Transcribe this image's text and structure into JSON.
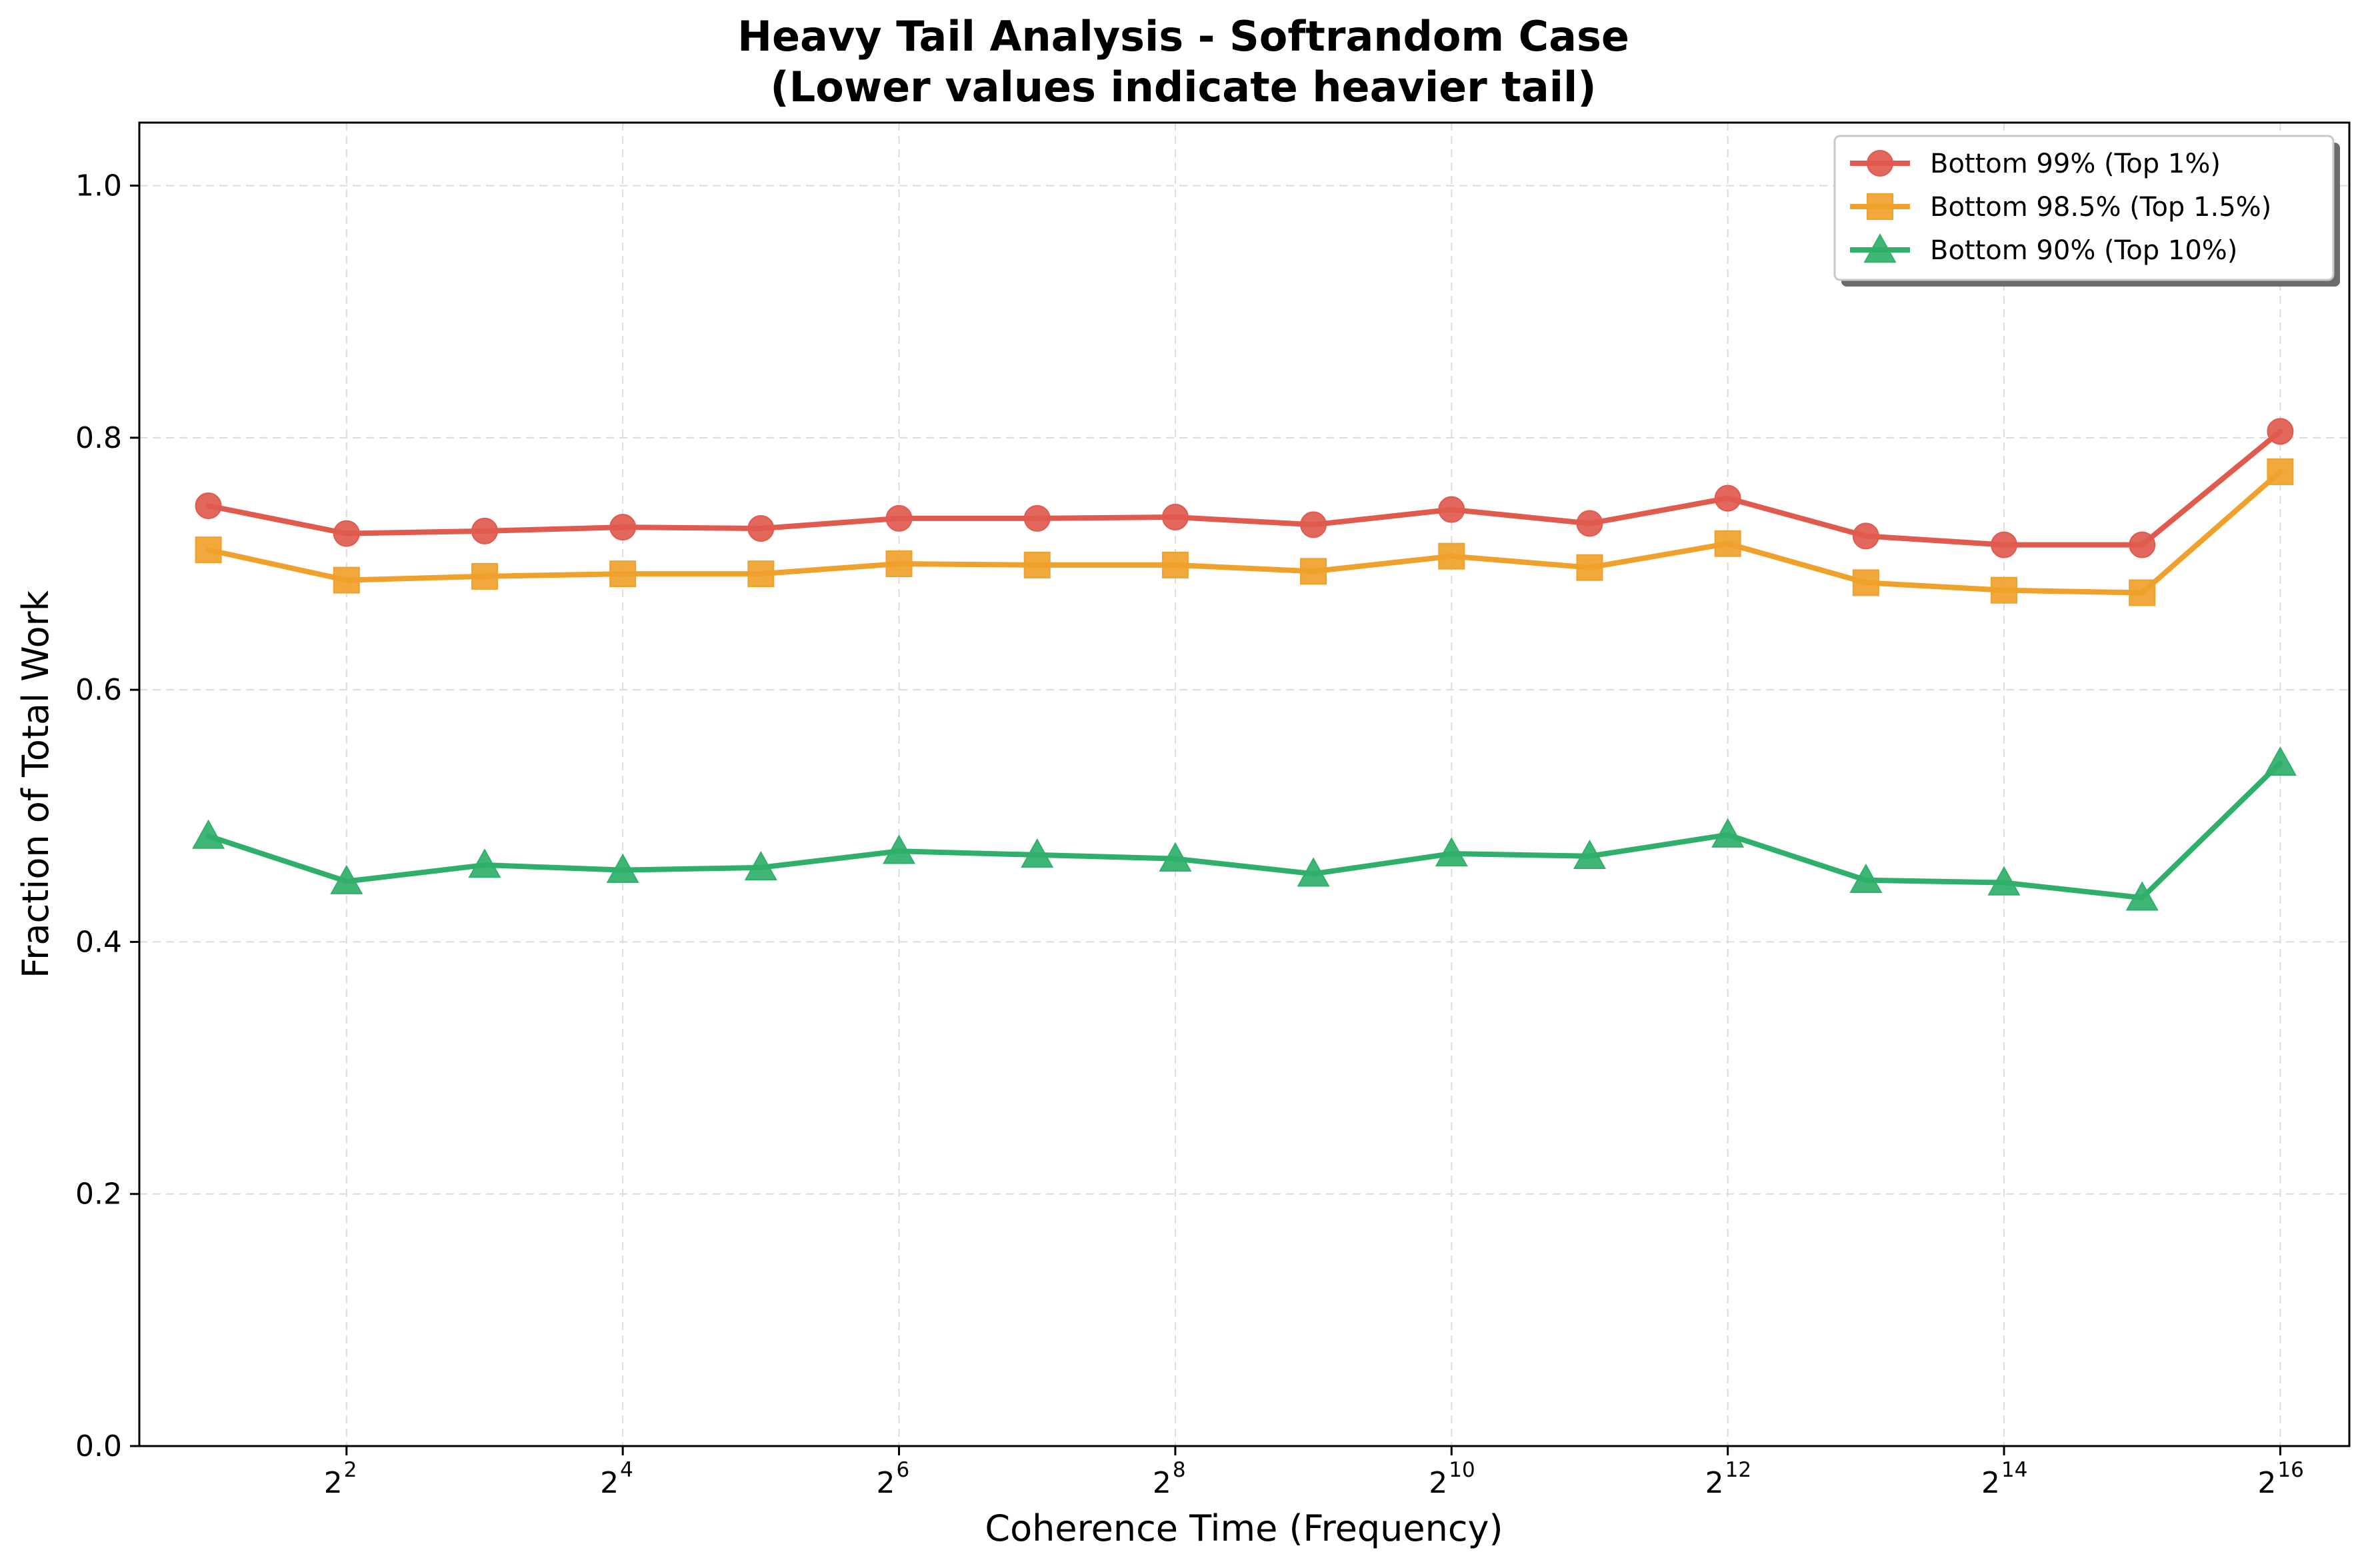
{
  "chart_data": {
    "type": "line",
    "title": [
      "Heavy Tail Analysis - Softrandom Case",
      "(Lower values indicate heavier tail)"
    ],
    "xlabel": "Coherence Time (Frequency)",
    "ylabel": "Fraction of Total Work",
    "x_scale": "log2",
    "x": [
      2,
      4,
      8,
      16,
      32,
      64,
      128,
      256,
      512,
      1024,
      2048,
      4096,
      8192,
      16384,
      32768,
      65536
    ],
    "x_ticks": [
      {
        "base": "2",
        "exp": "2"
      },
      {
        "base": "2",
        "exp": "4"
      },
      {
        "base": "2",
        "exp": "6"
      },
      {
        "base": "2",
        "exp": "8"
      },
      {
        "base": "2",
        "exp": "10"
      },
      {
        "base": "2",
        "exp": "12"
      },
      {
        "base": "2",
        "exp": "14"
      },
      {
        "base": "2",
        "exp": "16"
      }
    ],
    "ylim": [
      0,
      1.05
    ],
    "y_ticks": [
      "0.0",
      "0.2",
      "0.4",
      "0.6",
      "0.8",
      "1.0"
    ],
    "grid": true,
    "legend_position": "top-right",
    "series": [
      {
        "name": "Bottom 99% (Top 1%)",
        "color": "#e05a4e",
        "marker": "circle",
        "values": [
          0.746,
          0.724,
          0.726,
          0.729,
          0.728,
          0.736,
          0.736,
          0.737,
          0.731,
          0.743,
          0.732,
          0.752,
          0.722,
          0.715,
          0.715,
          0.805
        ]
      },
      {
        "name": "Bottom 98.5% (Top 1.5%)",
        "color": "#f0a12b",
        "marker": "square",
        "values": [
          0.711,
          0.687,
          0.69,
          0.692,
          0.692,
          0.7,
          0.699,
          0.699,
          0.694,
          0.706,
          0.697,
          0.716,
          0.685,
          0.679,
          0.677,
          0.773
        ]
      },
      {
        "name": "Bottom 90% (Top 10%)",
        "color": "#2fb06a",
        "marker": "triangle",
        "values": [
          0.484,
          0.448,
          0.461,
          0.457,
          0.459,
          0.472,
          0.469,
          0.466,
          0.454,
          0.47,
          0.468,
          0.485,
          0.449,
          0.447,
          0.435,
          0.542
        ]
      }
    ]
  }
}
